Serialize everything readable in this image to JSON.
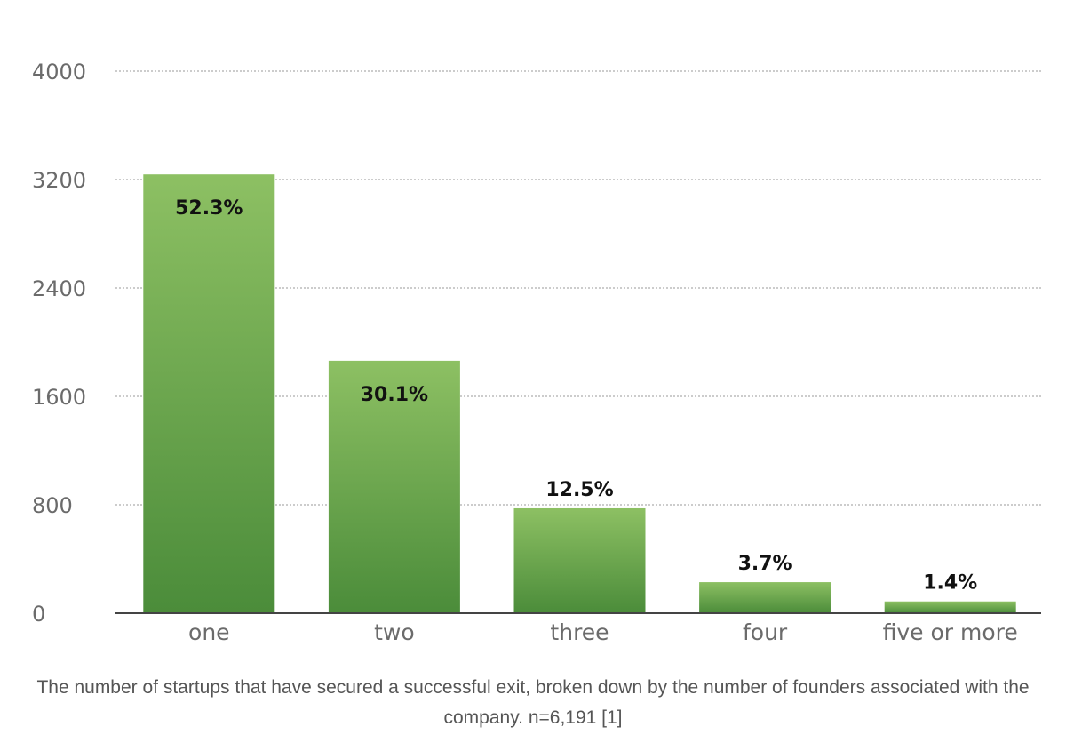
{
  "chart_data": {
    "type": "bar",
    "title": "",
    "xlabel": "",
    "ylabel": "",
    "categories": [
      "one",
      "two",
      "three",
      "four",
      "five or more"
    ],
    "values": [
      3238,
      1863,
      774,
      229,
      87
    ],
    "data_labels": [
      "52.3%",
      "30.1%",
      "12.5%",
      "3.7%",
      "1.4%"
    ],
    "ylim": [
      0,
      4000
    ],
    "yticks": [
      0,
      800,
      1600,
      2400,
      3200,
      4000
    ],
    "ytick_labels": [
      "0",
      "800",
      "1600",
      "2400",
      "3200",
      "4000"
    ],
    "grid": true,
    "legend": "none",
    "bar_color_top": "#8dc063",
    "bar_color_bottom": "#4b8c3a"
  },
  "caption": "The number of startups that have secured a successful exit, broken down by the number of founders associated with the company. n=6,191 [1]"
}
